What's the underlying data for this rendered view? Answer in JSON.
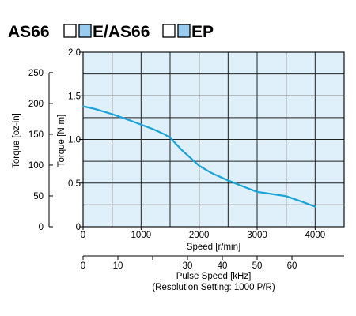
{
  "chart_data": {
    "type": "line",
    "title": {
      "part1": "AS66",
      "part2": "E/AS66",
      "part3": "EP",
      "box_outline_color": "#000000",
      "box_fill_color": "#99ccee"
    },
    "xlabel": "Speed [r/min]",
    "ylabel_nm": "Torque [N·m]",
    "ylabel_ozin": "Torque [oz-in]",
    "xlim": [
      0,
      4500
    ],
    "ylim": [
      0,
      2.0
    ],
    "ylim_ozin": [
      0,
      283.2
    ],
    "x_ticks": [
      0,
      1000,
      2000,
      3000,
      4000
    ],
    "y_ticks": [
      0,
      0.5,
      1.0,
      1.5,
      2.0
    ],
    "y_tick_labels": [
      "0",
      "0.5",
      "1.0",
      "1.5",
      "2.0"
    ],
    "y_ticks_ozin": [
      0,
      50,
      100,
      150,
      200,
      250
    ],
    "x_grid": [
      0,
      500,
      1000,
      1500,
      2000,
      2500,
      3000,
      3500,
      4000,
      4500
    ],
    "y_grid": [
      0,
      0.25,
      0.5,
      0.75,
      1.0,
      1.25,
      1.5,
      1.75,
      2.0
    ],
    "grid": true,
    "plot_bg_color": "#dff0fa",
    "grid_color": "#222222",
    "series": [
      {
        "color": "#1aa3d9",
        "x": [
          0,
          200,
          500,
          800,
          1000,
          1200,
          1400,
          1500,
          1700,
          2000,
          2200,
          2500,
          2800,
          3000,
          3200,
          3500,
          3800,
          4000
        ],
        "y": [
          1.38,
          1.35,
          1.29,
          1.22,
          1.17,
          1.12,
          1.06,
          1.02,
          0.88,
          0.7,
          0.62,
          0.53,
          0.45,
          0.4,
          0.38,
          0.35,
          0.28,
          0.23
        ]
      }
    ],
    "secondary_x_axis": {
      "label": "Pulse Speed [kHz]",
      "sublabel": "(Resolution Setting: 1000 P/R)",
      "ticks": [
        0,
        10,
        20,
        30,
        40,
        50,
        60
      ],
      "tick_labels": [
        "0",
        "10",
        "",
        "30",
        "40",
        "50",
        "60"
      ],
      "khz_per_rpm": 0.0166667
    }
  }
}
